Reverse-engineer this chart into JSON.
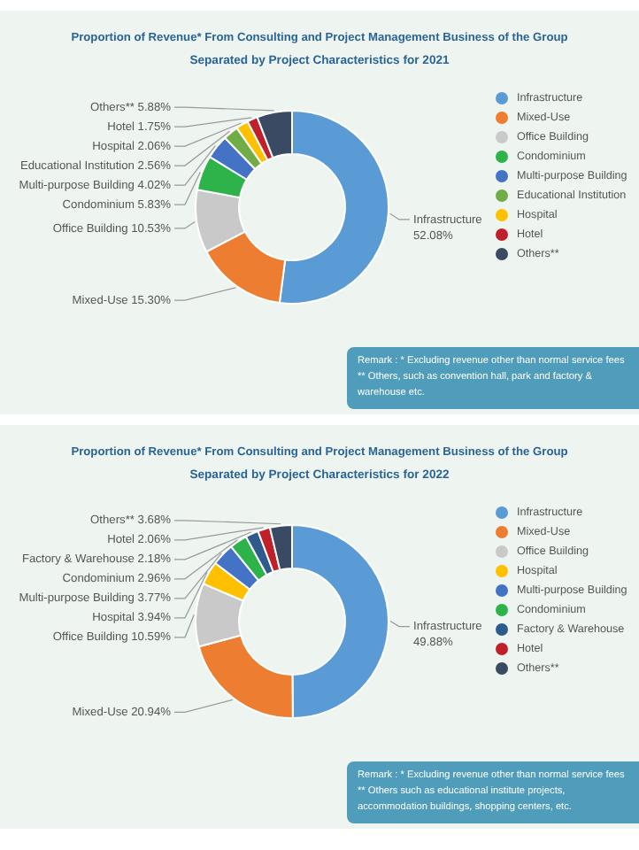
{
  "chart_data": [
    {
      "type": "donut",
      "title": "Proportion of Revenue* From Consulting and Project Management Business of the Group",
      "subtitle": "Separated by Project Characteristics for 2021",
      "categories": [
        "Infrastructure",
        "Mixed-Use",
        "Office Building",
        "Condominium",
        "Multi-purpose Building",
        "Educational Institution",
        "Hospital",
        "Hotel",
        "Others**"
      ],
      "values": [
        52.08,
        15.3,
        10.53,
        5.83,
        4.02,
        2.56,
        2.06,
        1.75,
        5.88
      ],
      "colors": [
        "#5b9bd5",
        "#ed7d31",
        "#c9c9c9",
        "#2db34a",
        "#4472c4",
        "#70ad47",
        "#ffc000",
        "#c0202a",
        "#3a4a62"
      ],
      "value_labels": [
        "Infrastructure 52.08%",
        "Mixed-Use 15.30%",
        "Office Building 10.53%",
        "Condominium 5.83%",
        "Multi-purpose Building 4.02%",
        "Educational Institution 2.56%",
        "Hospital 2.06%",
        "Hotel 1.75%",
        "Others** 5.88%"
      ],
      "legend": "right",
      "annotations": [
        "Remark : * Excluding revenue other than normal service fees",
        "** Others, such as convention hall, park and factory & warehouse etc."
      ]
    },
    {
      "type": "donut",
      "title": "Proportion of Revenue* From Consulting and Project Management Business of the Group",
      "subtitle": "Separated by Project Characteristics for 2022",
      "categories": [
        "Infrastructure",
        "Mixed-Use",
        "Office Building",
        "Hospital",
        "Multi-purpose Building",
        "Condominium",
        "Factory & Warehouse",
        "Hotel",
        "Others**"
      ],
      "values": [
        49.88,
        20.94,
        10.59,
        3.94,
        3.77,
        2.96,
        2.18,
        2.06,
        3.68
      ],
      "colors": [
        "#5b9bd5",
        "#ed7d31",
        "#c9c9c9",
        "#ffc000",
        "#4472c4",
        "#2db34a",
        "#2e5b8c",
        "#c0202a",
        "#3a4a62"
      ],
      "value_labels": [
        "Infrastructure 49.88%",
        "Mixed-Use 20.94%",
        "Office Building 10.59%",
        "Hospital 3.94%",
        "Multi-purpose Building 3.77%",
        "Condominium 2.96%",
        "Factory & Warehouse 2.18%",
        "Hotel 2.06%",
        "Others** 3.68%"
      ],
      "legend": "right",
      "annotations": [
        "Remark : * Excluding revenue other than normal service fees",
        "** Others such as educational institute projects, accommodation buildings, shopping centers, etc."
      ]
    }
  ]
}
